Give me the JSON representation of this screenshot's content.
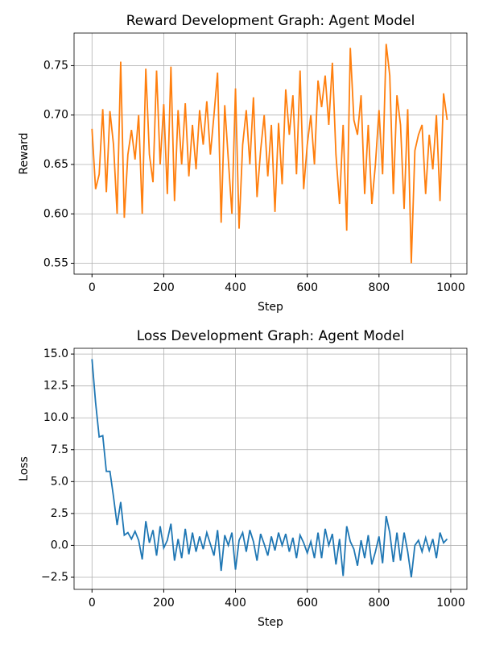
{
  "chart_data": [
    {
      "type": "line",
      "title": "Reward Development Graph: Agent Model",
      "xlabel": "Step",
      "ylabel": "Reward",
      "color": "#ff7f0e",
      "grid": true,
      "x": [
        0,
        10,
        20,
        30,
        40,
        50,
        60,
        70,
        80,
        90,
        100,
        110,
        120,
        130,
        140,
        150,
        160,
        170,
        180,
        190,
        200,
        210,
        220,
        230,
        240,
        250,
        260,
        270,
        280,
        290,
        300,
        310,
        320,
        330,
        340,
        350,
        360,
        370,
        380,
        390,
        400,
        410,
        420,
        430,
        440,
        450,
        460,
        470,
        480,
        490,
        500,
        510,
        520,
        530,
        540,
        550,
        560,
        570,
        580,
        590,
        600,
        610,
        620,
        630,
        640,
        650,
        660,
        670,
        680,
        690,
        700,
        710,
        720,
        730,
        740,
        750,
        760,
        770,
        780,
        790,
        800,
        810,
        820,
        830,
        840,
        850,
        860,
        870,
        880,
        890,
        900,
        910,
        920,
        930,
        940,
        950,
        960,
        970,
        980,
        990
      ],
      "values": [
        0.686,
        0.625,
        0.64,
        0.706,
        0.622,
        0.704,
        0.67,
        0.6,
        0.754,
        0.596,
        0.66,
        0.685,
        0.655,
        0.7,
        0.6,
        0.747,
        0.66,
        0.632,
        0.745,
        0.65,
        0.711,
        0.62,
        0.749,
        0.613,
        0.705,
        0.65,
        0.712,
        0.638,
        0.69,
        0.645,
        0.705,
        0.67,
        0.714,
        0.66,
        0.7,
        0.743,
        0.591,
        0.71,
        0.655,
        0.6,
        0.727,
        0.585,
        0.67,
        0.705,
        0.65,
        0.718,
        0.617,
        0.664,
        0.7,
        0.638,
        0.69,
        0.602,
        0.692,
        0.63,
        0.726,
        0.68,
        0.72,
        0.64,
        0.745,
        0.625,
        0.67,
        0.7,
        0.65,
        0.735,
        0.708,
        0.74,
        0.69,
        0.753,
        0.66,
        0.61,
        0.69,
        0.583,
        0.768,
        0.695,
        0.68,
        0.72,
        0.62,
        0.69,
        0.61,
        0.65,
        0.705,
        0.64,
        0.772,
        0.74,
        0.62,
        0.72,
        0.69,
        0.605,
        0.706,
        0.55,
        0.664,
        0.68,
        0.69,
        0.62,
        0.68,
        0.645,
        0.7,
        0.613,
        0.722,
        0.695
      ],
      "xlim": [
        -50,
        1045
      ],
      "xticks": [
        0,
        200,
        400,
        600,
        800,
        1000
      ],
      "ylim": [
        0.539,
        0.783
      ],
      "yticks": [
        0.55,
        {
          "value": 0.6,
          "label": "0.60"
        },
        0.65,
        {
          "value": 0.7,
          "label": "0.70"
        },
        0.75
      ]
    },
    {
      "type": "line",
      "title": "Loss Development Graph: Agent Model",
      "xlabel": "Step",
      "ylabel": "Loss",
      "color": "#1f77b4",
      "grid": true,
      "x": [
        0,
        10,
        20,
        30,
        40,
        50,
        60,
        70,
        80,
        90,
        100,
        110,
        120,
        130,
        140,
        150,
        160,
        170,
        180,
        190,
        200,
        210,
        220,
        230,
        240,
        250,
        260,
        270,
        280,
        290,
        300,
        310,
        320,
        330,
        340,
        350,
        360,
        370,
        380,
        390,
        400,
        410,
        420,
        430,
        440,
        450,
        460,
        470,
        480,
        490,
        500,
        510,
        520,
        530,
        540,
        550,
        560,
        570,
        580,
        590,
        600,
        610,
        620,
        630,
        640,
        650,
        660,
        670,
        680,
        690,
        700,
        710,
        720,
        730,
        740,
        750,
        760,
        770,
        780,
        790,
        800,
        810,
        820,
        830,
        840,
        850,
        860,
        870,
        880,
        890,
        900,
        910,
        920,
        930,
        940,
        950,
        960,
        970,
        980,
        990
      ],
      "values": [
        14.6,
        11.2,
        8.5,
        8.6,
        5.8,
        5.8,
        3.8,
        1.6,
        3.4,
        0.8,
        1.0,
        0.5,
        1.1,
        0.4,
        -1.1,
        1.9,
        0.2,
        1.2,
        -0.8,
        1.5,
        -0.2,
        0.4,
        1.7,
        -1.2,
        0.5,
        -1.0,
        1.3,
        -0.7,
        1.0,
        -0.5,
        0.7,
        -0.3,
        1.0,
        0.1,
        -0.8,
        1.2,
        -2.0,
        0.8,
        0.0,
        1.0,
        -1.9,
        0.4,
        1.0,
        -0.5,
        1.2,
        0.3,
        -1.2,
        0.9,
        0.1,
        -0.8,
        0.7,
        -0.4,
        1.0,
        0.0,
        0.9,
        -0.5,
        0.6,
        -1.0,
        0.8,
        0.2,
        -0.6,
        0.3,
        -1.0,
        1.0,
        -1.0,
        1.3,
        0.0,
        0.9,
        -1.5,
        0.5,
        -2.4,
        1.5,
        0.3,
        -0.3,
        -1.6,
        0.4,
        -1.0,
        0.8,
        -1.5,
        -0.5,
        0.7,
        -1.4,
        2.3,
        1.0,
        -1.3,
        1.0,
        -1.2,
        1.0,
        -0.5,
        -2.5,
        0.0,
        0.4,
        -0.5,
        0.6,
        -0.4,
        0.5,
        -1.0,
        1.0,
        0.2,
        0.5
      ],
      "xlim": [
        -50,
        1045
      ],
      "xticks": [
        0,
        200,
        400,
        600,
        800,
        1000
      ],
      "ylim": [
        -3.45,
        15.45
      ],
      "yticks": [
        {
          "value": -2.5,
          "label": "−2.5"
        },
        {
          "value": 0,
          "label": "0.0"
        },
        2.5,
        {
          "value": 5,
          "label": "5.0"
        },
        7.5,
        {
          "value": 10,
          "label": "10.0"
        },
        12.5,
        {
          "value": 15,
          "label": "15.0"
        }
      ]
    }
  ]
}
